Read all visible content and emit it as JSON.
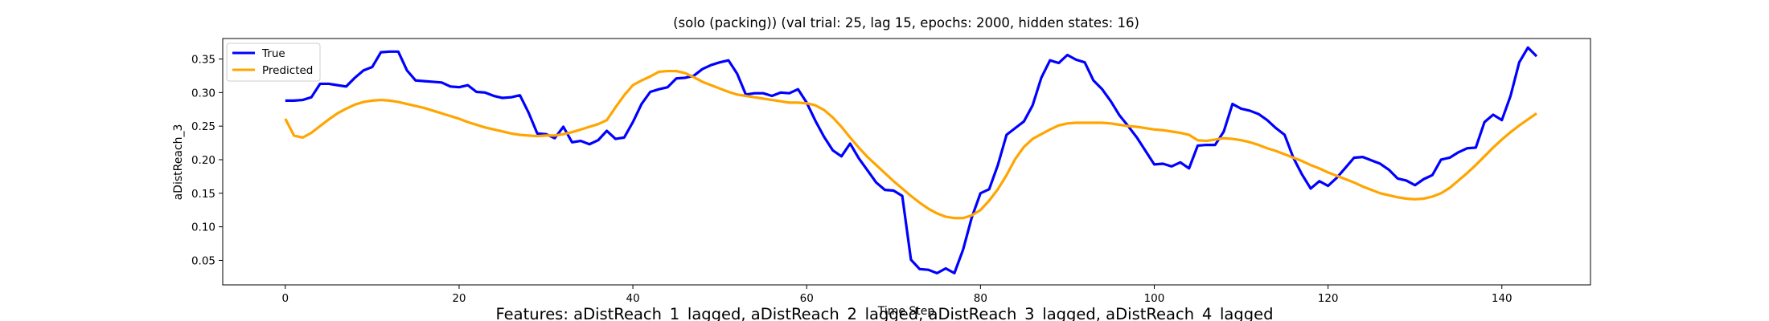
{
  "chart_data": {
    "type": "line",
    "title": "(solo (packing)) (val trial: 25, lag 15, epochs: 2000, hidden states: 16)",
    "xlabel": "Time Step",
    "ylabel": "aDistReach_3",
    "footer": "Features: aDistReach_1_lagged, aDistReach_2_lagged, aDistReach_3_lagged, aDistReach_4_lagged",
    "xlim": [
      -7.2,
      150.2
    ],
    "ylim": [
      0.0135,
      0.3805
    ],
    "xticks": [
      0,
      20,
      40,
      60,
      80,
      100,
      120,
      140
    ],
    "xtick_labels": [
      "0",
      "20",
      "40",
      "60",
      "80",
      "100",
      "120",
      "140"
    ],
    "yticks": [
      0.05,
      0.1,
      0.15,
      0.2,
      0.25,
      0.3,
      0.35
    ],
    "ytick_labels": [
      "0.05",
      "0.10",
      "0.15",
      "0.20",
      "0.25",
      "0.30",
      "0.35"
    ],
    "grid": false,
    "legend": {
      "position": "upper-left"
    },
    "series": [
      {
        "name": "True",
        "color": "#0000ff",
        "values": [
          0.288,
          0.288,
          0.289,
          0.293,
          0.313,
          0.313,
          0.311,
          0.309,
          0.322,
          0.333,
          0.338,
          0.36,
          0.361,
          0.361,
          0.333,
          0.318,
          0.317,
          0.316,
          0.315,
          0.309,
          0.308,
          0.311,
          0.301,
          0.3,
          0.295,
          0.292,
          0.293,
          0.296,
          0.27,
          0.239,
          0.238,
          0.232,
          0.249,
          0.226,
          0.228,
          0.223,
          0.229,
          0.243,
          0.231,
          0.233,
          0.256,
          0.283,
          0.301,
          0.305,
          0.308,
          0.321,
          0.322,
          0.325,
          0.335,
          0.341,
          0.345,
          0.348,
          0.328,
          0.297,
          0.299,
          0.299,
          0.295,
          0.3,
          0.299,
          0.305,
          0.285,
          0.258,
          0.234,
          0.214,
          0.205,
          0.224,
          0.202,
          0.184,
          0.166,
          0.155,
          0.154,
          0.146,
          0.051,
          0.037,
          0.036,
          0.031,
          0.038,
          0.031,
          0.066,
          0.114,
          0.15,
          0.156,
          0.192,
          0.237,
          0.247,
          0.257,
          0.281,
          0.322,
          0.348,
          0.344,
          0.356,
          0.349,
          0.345,
          0.318,
          0.305,
          0.287,
          0.266,
          0.25,
          0.233,
          0.213,
          0.193,
          0.194,
          0.19,
          0.196,
          0.187,
          0.221,
          0.222,
          0.222,
          0.242,
          0.283,
          0.276,
          0.273,
          0.268,
          0.259,
          0.247,
          0.237,
          0.203,
          0.178,
          0.157,
          0.168,
          0.161,
          0.173,
          0.188,
          0.203,
          0.204,
          0.199,
          0.194,
          0.185,
          0.172,
          0.169,
          0.162,
          0.171,
          0.177,
          0.2,
          0.203,
          0.211,
          0.217,
          0.218,
          0.256,
          0.267,
          0.259,
          0.295,
          0.345,
          0.367,
          0.354
        ]
      },
      {
        "name": "Predicted",
        "color": "#ffa500",
        "values": [
          0.261,
          0.236,
          0.233,
          0.24,
          0.25,
          0.26,
          0.269,
          0.276,
          0.282,
          0.286,
          0.288,
          0.289,
          0.288,
          0.286,
          0.283,
          0.28,
          0.277,
          0.273,
          0.269,
          0.265,
          0.261,
          0.256,
          0.252,
          0.248,
          0.245,
          0.242,
          0.239,
          0.237,
          0.236,
          0.235,
          0.236,
          0.236,
          0.238,
          0.241,
          0.245,
          0.249,
          0.253,
          0.259,
          0.278,
          0.296,
          0.311,
          0.318,
          0.324,
          0.331,
          0.332,
          0.332,
          0.329,
          0.323,
          0.316,
          0.311,
          0.306,
          0.301,
          0.297,
          0.295,
          0.293,
          0.291,
          0.289,
          0.287,
          0.285,
          0.285,
          0.284,
          0.281,
          0.274,
          0.263,
          0.249,
          0.233,
          0.218,
          0.204,
          0.192,
          0.18,
          0.168,
          0.157,
          0.146,
          0.136,
          0.127,
          0.12,
          0.115,
          0.113,
          0.113,
          0.117,
          0.125,
          0.139,
          0.156,
          0.177,
          0.201,
          0.219,
          0.231,
          0.238,
          0.245,
          0.251,
          0.254,
          0.255,
          0.255,
          0.255,
          0.255,
          0.254,
          0.252,
          0.25,
          0.249,
          0.247,
          0.245,
          0.244,
          0.242,
          0.24,
          0.237,
          0.229,
          0.228,
          0.23,
          0.232,
          0.231,
          0.229,
          0.226,
          0.222,
          0.217,
          0.213,
          0.208,
          0.203,
          0.198,
          0.192,
          0.187,
          0.181,
          0.176,
          0.171,
          0.166,
          0.16,
          0.155,
          0.15,
          0.147,
          0.144,
          0.142,
          0.141,
          0.142,
          0.145,
          0.15,
          0.158,
          0.169,
          0.18,
          0.192,
          0.205,
          0.218,
          0.23,
          0.241,
          0.251,
          0.26,
          0.269
        ]
      }
    ]
  }
}
